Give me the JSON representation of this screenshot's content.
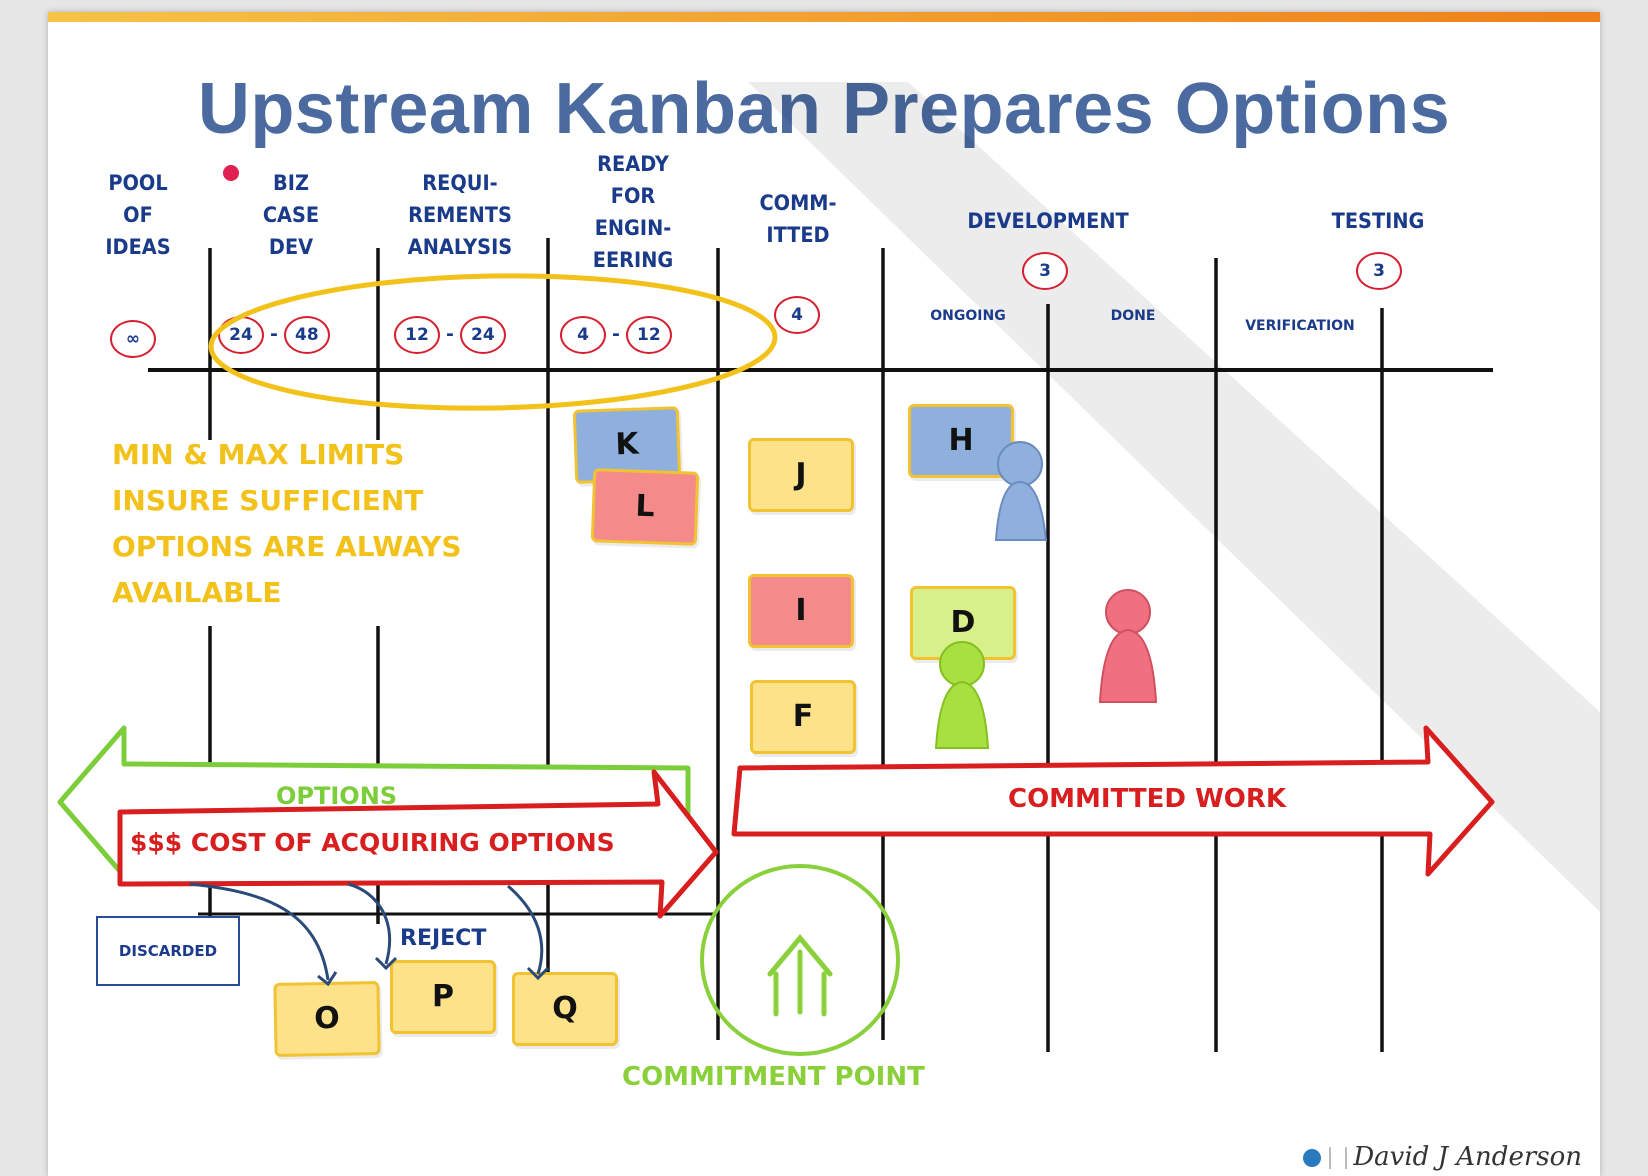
{
  "title": "Upstream Kanban Prepares Options",
  "columns": {
    "pool": "POOL\nOF\nIDEAS",
    "biz": "BIZ\nCASE\nDEV",
    "req": "REQUI-\nREMENTS\nANALYSIS",
    "ready": "READY\nFOR\nENGIN-\nEERING",
    "committed": "COMM-\nITTED",
    "development": "DEVELOPMENT",
    "testing": "TESTING"
  },
  "subcolumns": {
    "ongoing": "ONGOING",
    "done": "DONE",
    "verification": "VERIFICATION"
  },
  "limits": {
    "pool": "∞",
    "biz_min": "24",
    "biz_max": "48",
    "req_min": "12",
    "req_max": "24",
    "ready_min": "4",
    "ready_max": "12",
    "committed": "4",
    "development": "3",
    "testing": "3",
    "separator": "-"
  },
  "cards": {
    "k": "K",
    "l": "L",
    "j": "J",
    "h": "H",
    "i": "I",
    "d": "D",
    "f": "F",
    "o": "O",
    "p": "P",
    "q": "Q"
  },
  "note": {
    "line1": "MIN & MAX LIMITS",
    "line2": "INSURE SUFFICIENT",
    "line3": "OPTIONS ARE ALWAYS",
    "line4": "AVAILABLE"
  },
  "arrows": {
    "options": "OPTIONS",
    "cost": "$$$ COST OF ACQUIRING OPTIONS",
    "committed_work": "COMMITTED WORK"
  },
  "discarded": "DISCARDED",
  "reject": "REJECT",
  "commitment_point": "COMMITMENT POINT",
  "author": "David J Anderson",
  "colors": {
    "accent": "#f39c12",
    "title": "#4a6aa0",
    "header_text": "#1a3a8a",
    "limit_circle": "#d62030",
    "note": "#f2c21a",
    "options_green": "#7ccd3a",
    "cost_red": "#d81e1e",
    "card_yellow": "#fde28a",
    "card_red": "#f58a8a",
    "card_blue": "#8fb0dc",
    "card_lime": "#d7f08a",
    "token_blue": "#8fb0dc",
    "token_red": "#f07080",
    "token_green": "#a8e040"
  }
}
